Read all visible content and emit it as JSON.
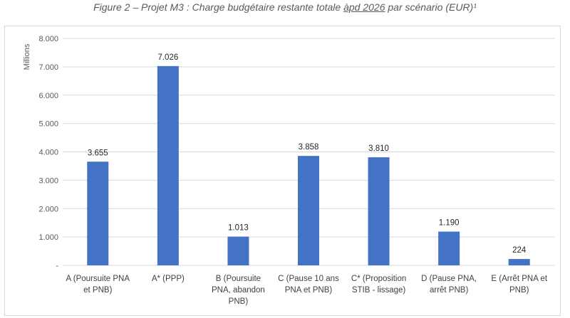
{
  "caption": {
    "prefix": "Figure 2 – Projet M3 : Charge budgétaire restante totale ",
    "underlined": "àpd 2026",
    "suffix": " par scénario (EUR)¹"
  },
  "chart_data": {
    "type": "bar",
    "title": "Figure 2 – Projet M3 : Charge budgétaire restante totale àpd 2026 par scénario (EUR)¹",
    "ylabel": "Millions",
    "xlabel": "",
    "ylim": [
      0,
      8000
    ],
    "yticks": [
      "-",
      "1.000",
      "2.000",
      "3.000",
      "4.000",
      "5.000",
      "6.000",
      "7.000",
      "8.000"
    ],
    "grid": true,
    "legend": "none",
    "bar_color": "#4472c4",
    "categories": [
      [
        "A (Poursuite PNA",
        "et PNB)"
      ],
      [
        "A* (PPP)"
      ],
      [
        "B (Poursuite",
        "PNA, abandon",
        "PNB)"
      ],
      [
        "C (Pause 10 ans",
        "PNA et PNB)"
      ],
      [
        "C* (Proposition",
        "STIB - lissage)"
      ],
      [
        "D (Pause PNA,",
        "arrêt PNB)"
      ],
      [
        "E (Arrêt PNA et",
        "PNB)"
      ]
    ],
    "values": [
      3655,
      7026,
      1013,
      3858,
      3810,
      1190,
      224
    ],
    "value_labels": [
      "3.655",
      "7.026",
      "1.013",
      "3.858",
      "3.810",
      "1.190",
      "224"
    ]
  }
}
